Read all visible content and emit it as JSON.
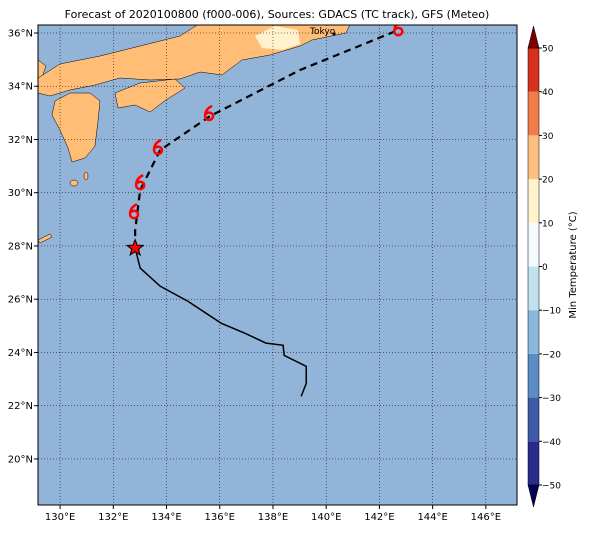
{
  "title": "Forecast of 2020100800 (f000-006), Sources: GDACS (TC track), GFS (Meteo)",
  "map": {
    "xlim": [
      129.17,
      147.17
    ],
    "ylim": [
      18.27,
      36.3
    ],
    "xticks": [
      {
        "value": 130,
        "label": "130°E"
      },
      {
        "value": 132,
        "label": "132°E"
      },
      {
        "value": 134,
        "label": "134°E"
      },
      {
        "value": 136,
        "label": "136°E"
      },
      {
        "value": 138,
        "label": "138°E"
      },
      {
        "value": 140,
        "label": "140°E"
      },
      {
        "value": 142,
        "label": "142°E"
      },
      {
        "value": 144,
        "label": "144°E"
      },
      {
        "value": 146,
        "label": "146°E"
      }
    ],
    "yticks": [
      {
        "value": 20,
        "label": "20°N"
      },
      {
        "value": 22,
        "label": "22°N"
      },
      {
        "value": 24,
        "label": "24°N"
      },
      {
        "value": 26,
        "label": "26°N"
      },
      {
        "value": 28,
        "label": "28°N"
      },
      {
        "value": 30,
        "label": "30°N"
      },
      {
        "value": 32,
        "label": "32°N"
      },
      {
        "value": 34,
        "label": "34°N"
      },
      {
        "value": 36,
        "label": "36°N"
      }
    ],
    "grid": true,
    "city": "Tokyo",
    "track": {
      "past_lon": [
        139.06,
        139.25,
        139.25,
        138.42,
        138.38,
        137.74,
        136.95,
        136.05,
        134.81,
        133.76,
        133.01,
        132.82
      ],
      "past_lat": [
        22.35,
        22.84,
        23.48,
        23.89,
        24.27,
        24.35,
        24.72,
        25.1,
        25.92,
        26.49,
        27.17,
        27.92
      ],
      "forecast_lon": [
        132.82,
        132.82,
        133.01,
        133.76,
        135.64,
        139.02,
        142.71
      ],
      "forecast_lat": [
        27.92,
        28.59,
        30.1,
        31.6,
        32.88,
        34.61,
        36.11
      ],
      "color": "#000000",
      "star_color": "#ff0000"
    },
    "storms": {
      "lon": [
        132.78,
        133.01,
        133.68,
        135.6,
        142.71
      ],
      "lat": [
        29.23,
        30.32,
        31.64,
        32.92,
        36.1
      ],
      "color": "#ff0000"
    }
  },
  "colorbar": {
    "label": "Min Temperature (°C)",
    "lim": [
      -50,
      50
    ],
    "ticks": [
      {
        "value": -50,
        "label": "−50"
      },
      {
        "value": -40,
        "label": "−40"
      },
      {
        "value": -30,
        "label": "−30"
      },
      {
        "value": -20,
        "label": "−20"
      },
      {
        "value": -10,
        "label": "−10"
      },
      0,
      10,
      20,
      30,
      40,
      50
    ],
    "colors": [
      "#2a2a8c",
      "#3f5aa8",
      "#5b8cc4",
      "#8ab8da",
      "#c2e1ee",
      "#f5fbfd",
      "#fff2cc",
      "#ffbf7f",
      "#f07c4a",
      "#d7301f"
    ],
    "under": "#050050",
    "over": "#7f0000"
  }
}
